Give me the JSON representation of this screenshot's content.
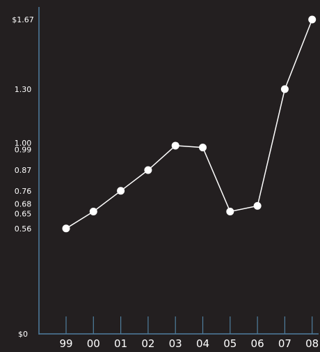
{
  "chart_data": {
    "type": "line",
    "title": "",
    "xlabel": "",
    "ylabel": "",
    "categories": [
      "99",
      "00",
      "01",
      "02",
      "03",
      "04",
      "05",
      "06",
      "07",
      "08"
    ],
    "values": [
      0.56,
      0.65,
      0.76,
      0.87,
      1.0,
      0.99,
      0.65,
      0.68,
      1.3,
      1.67
    ],
    "y_ticks": [
      {
        "value": 0,
        "label": "$0"
      },
      {
        "value": 0.56,
        "label": "0.56"
      },
      {
        "value": 0.65,
        "label": "0.65"
      },
      {
        "value": 0.68,
        "label": "0.68"
      },
      {
        "value": 0.76,
        "label": "0.76"
      },
      {
        "value": 0.87,
        "label": "0.87"
      },
      {
        "value": 0.99,
        "label": "0.99"
      },
      {
        "value": 1.0,
        "label": "1.00"
      },
      {
        "value": 1.3,
        "label": "1.30"
      },
      {
        "value": 1.67,
        "label": "$1.67"
      }
    ],
    "ylim": [
      0,
      1.67
    ],
    "grid": false,
    "colors": {
      "background": "#231f20",
      "line": "#ffffff",
      "marker": "#ffffff",
      "axis": "#4f7f9f",
      "text": "#ffffff"
    }
  }
}
